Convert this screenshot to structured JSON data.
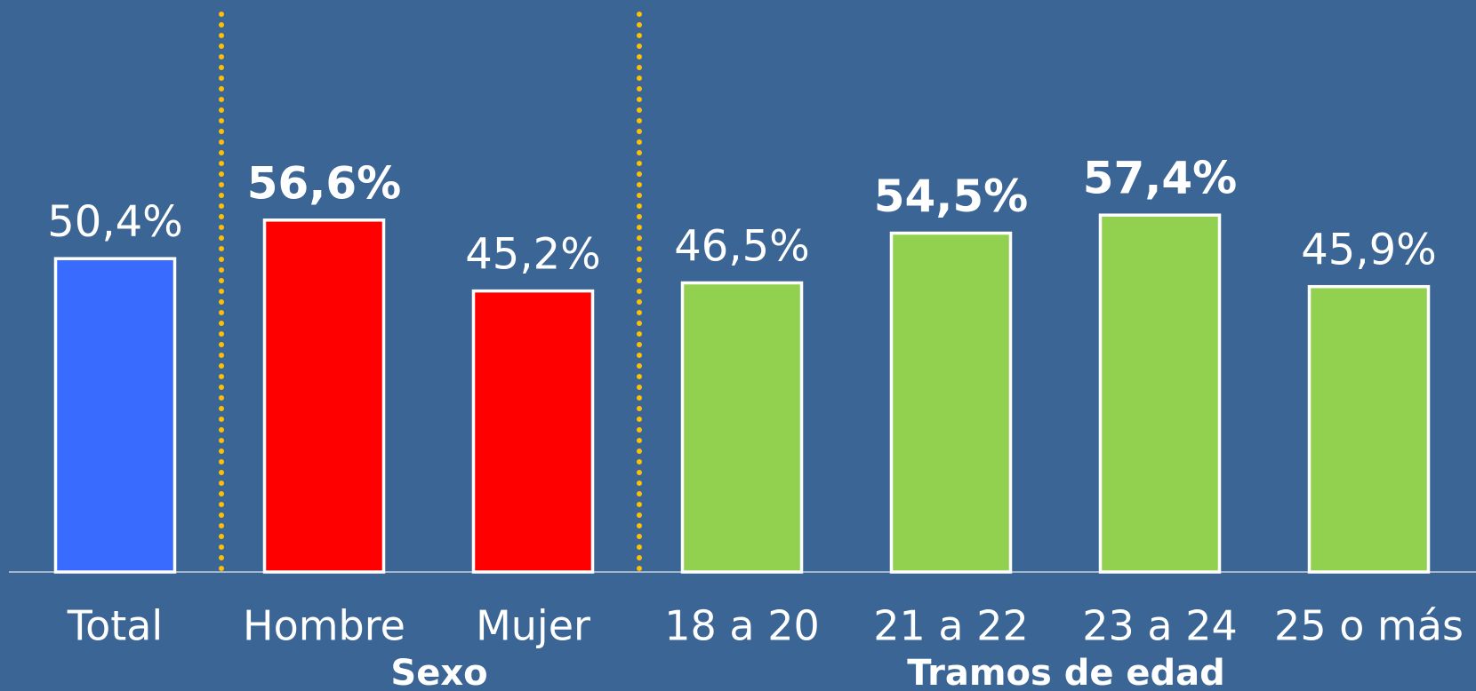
{
  "chart_data": {
    "type": "bar",
    "categories": [
      "Total",
      "Hombre",
      "Mujer",
      "18 a 20",
      "21 a 22",
      "23 a 24",
      "25 o más"
    ],
    "values": [
      50.4,
      56.6,
      45.2,
      46.5,
      54.5,
      57.4,
      45.9
    ],
    "value_labels": [
      "50,4%",
      "56,6%",
      "45,2%",
      "46,5%",
      "54,5%",
      "57,4%",
      "45,9%"
    ],
    "value_label_bold": [
      false,
      true,
      false,
      false,
      true,
      true,
      false
    ],
    "colors": [
      "#3a6bff",
      "#ff0000",
      "#ff0000",
      "#92d050",
      "#92d050",
      "#92d050",
      "#92d050"
    ],
    "groups": [
      {
        "label": "Sexo",
        "start": 1,
        "end": 2
      },
      {
        "label": "Tramos de edad",
        "start": 3,
        "end": 6
      }
    ],
    "ylim": [
      0,
      92
    ]
  }
}
